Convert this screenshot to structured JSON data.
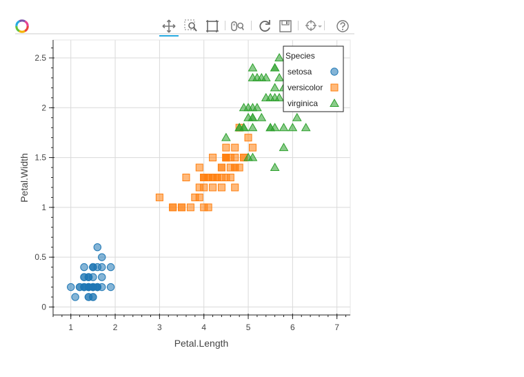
{
  "toolbar": {
    "tools": [
      {
        "name": "pan-tool",
        "icon": "move-icon",
        "active": true
      },
      {
        "name": "box-zoom-tool",
        "icon": "box-zoom-icon",
        "active": false
      },
      {
        "name": "box-select-tool",
        "icon": "box-select-icon",
        "active": false
      },
      {
        "name": "wheel-zoom-tool",
        "icon": "wheel-zoom-icon",
        "active": false
      },
      {
        "name": "reset-tool",
        "icon": "reset-icon",
        "active": false
      },
      {
        "name": "save-tool",
        "icon": "save-icon",
        "active": false
      },
      {
        "name": "hover-tool",
        "icon": "crosshair-icon",
        "active": false
      },
      {
        "name": "help-tool",
        "icon": "help-icon",
        "active": false
      }
    ]
  },
  "chart_data": {
    "type": "scatter",
    "title": "",
    "xlabel": "Petal.Length",
    "ylabel": "Petal.Width",
    "xlim": [
      0.6,
      7.3
    ],
    "ylim": [
      -0.08,
      2.68
    ],
    "xticks": [
      "1",
      "2",
      "3",
      "4",
      "5",
      "6",
      "7"
    ],
    "yticks": [
      "0",
      "0.5",
      "1",
      "1.5",
      "2",
      "2.5"
    ],
    "grid": true,
    "legend": {
      "title": "Species",
      "position": "top-right"
    },
    "series": [
      {
        "name": "setosa",
        "marker": "circle",
        "color": "#1f77b4",
        "points": [
          [
            1.4,
            0.2
          ],
          [
            1.4,
            0.2
          ],
          [
            1.3,
            0.2
          ],
          [
            1.5,
            0.2
          ],
          [
            1.4,
            0.2
          ],
          [
            1.7,
            0.4
          ],
          [
            1.4,
            0.3
          ],
          [
            1.5,
            0.2
          ],
          [
            1.4,
            0.2
          ],
          [
            1.5,
            0.1
          ],
          [
            1.5,
            0.2
          ],
          [
            1.6,
            0.2
          ],
          [
            1.4,
            0.1
          ],
          [
            1.1,
            0.1
          ],
          [
            1.2,
            0.2
          ],
          [
            1.5,
            0.4
          ],
          [
            1.3,
            0.4
          ],
          [
            1.4,
            0.3
          ],
          [
            1.7,
            0.3
          ],
          [
            1.5,
            0.3
          ],
          [
            1.7,
            0.2
          ],
          [
            1.5,
            0.4
          ],
          [
            1.0,
            0.2
          ],
          [
            1.7,
            0.5
          ],
          [
            1.9,
            0.2
          ],
          [
            1.6,
            0.2
          ],
          [
            1.6,
            0.4
          ],
          [
            1.5,
            0.2
          ],
          [
            1.4,
            0.2
          ],
          [
            1.6,
            0.2
          ],
          [
            1.6,
            0.2
          ],
          [
            1.5,
            0.4
          ],
          [
            1.5,
            0.1
          ],
          [
            1.4,
            0.2
          ],
          [
            1.5,
            0.2
          ],
          [
            1.2,
            0.2
          ],
          [
            1.3,
            0.2
          ],
          [
            1.4,
            0.1
          ],
          [
            1.3,
            0.2
          ],
          [
            1.5,
            0.2
          ],
          [
            1.3,
            0.3
          ],
          [
            1.3,
            0.3
          ],
          [
            1.3,
            0.2
          ],
          [
            1.6,
            0.6
          ],
          [
            1.9,
            0.4
          ],
          [
            1.4,
            0.3
          ],
          [
            1.6,
            0.2
          ],
          [
            1.4,
            0.2
          ],
          [
            1.5,
            0.2
          ],
          [
            1.4,
            0.2
          ]
        ]
      },
      {
        "name": "versicolor",
        "marker": "square",
        "color": "#ff7f0e",
        "points": [
          [
            4.7,
            1.4
          ],
          [
            4.5,
            1.5
          ],
          [
            4.9,
            1.5
          ],
          [
            4.0,
            1.3
          ],
          [
            4.6,
            1.5
          ],
          [
            4.5,
            1.3
          ],
          [
            4.7,
            1.6
          ],
          [
            3.3,
            1.0
          ],
          [
            4.6,
            1.3
          ],
          [
            3.9,
            1.4
          ],
          [
            3.5,
            1.0
          ],
          [
            4.2,
            1.5
          ],
          [
            4.0,
            1.0
          ],
          [
            4.7,
            1.4
          ],
          [
            3.6,
            1.3
          ],
          [
            4.4,
            1.4
          ],
          [
            4.5,
            1.5
          ],
          [
            4.1,
            1.0
          ],
          [
            4.5,
            1.5
          ],
          [
            3.9,
            1.1
          ],
          [
            4.8,
            1.8
          ],
          [
            4.0,
            1.3
          ],
          [
            4.9,
            1.5
          ],
          [
            4.7,
            1.2
          ],
          [
            4.3,
            1.3
          ],
          [
            4.4,
            1.4
          ],
          [
            4.8,
            1.4
          ],
          [
            5.0,
            1.7
          ],
          [
            4.5,
            1.5
          ],
          [
            3.5,
            1.0
          ],
          [
            3.8,
            1.1
          ],
          [
            3.7,
            1.0
          ],
          [
            3.9,
            1.2
          ],
          [
            5.1,
            1.6
          ],
          [
            4.5,
            1.5
          ],
          [
            4.5,
            1.6
          ],
          [
            4.7,
            1.5
          ],
          [
            4.4,
            1.3
          ],
          [
            4.1,
            1.3
          ],
          [
            4.0,
            1.3
          ],
          [
            4.4,
            1.2
          ],
          [
            4.6,
            1.4
          ],
          [
            4.0,
            1.2
          ],
          [
            3.3,
            1.0
          ],
          [
            4.2,
            1.3
          ],
          [
            4.2,
            1.2
          ],
          [
            4.2,
            1.3
          ],
          [
            4.3,
            1.3
          ],
          [
            3.0,
            1.1
          ],
          [
            4.1,
            1.3
          ]
        ]
      },
      {
        "name": "virginica",
        "marker": "triangle",
        "color": "#2ca02c",
        "points": [
          [
            6.0,
            2.5
          ],
          [
            5.1,
            1.9
          ],
          [
            5.9,
            2.1
          ],
          [
            5.6,
            1.8
          ],
          [
            5.8,
            2.2
          ],
          [
            6.6,
            2.1
          ],
          [
            4.5,
            1.7
          ],
          [
            6.3,
            1.8
          ],
          [
            5.8,
            1.8
          ],
          [
            6.1,
            2.5
          ],
          [
            5.1,
            2.0
          ],
          [
            5.3,
            1.9
          ],
          [
            5.5,
            2.1
          ],
          [
            5.0,
            2.0
          ],
          [
            5.1,
            2.4
          ],
          [
            5.3,
            2.3
          ],
          [
            5.5,
            1.8
          ],
          [
            6.7,
            2.2
          ],
          [
            6.9,
            2.3
          ],
          [
            5.0,
            1.5
          ],
          [
            5.7,
            2.3
          ],
          [
            4.9,
            2.0
          ],
          [
            6.7,
            2.0
          ],
          [
            4.9,
            1.8
          ],
          [
            5.7,
            2.1
          ],
          [
            6.0,
            1.8
          ],
          [
            4.8,
            1.8
          ],
          [
            4.9,
            1.8
          ],
          [
            5.6,
            2.1
          ],
          [
            5.8,
            1.6
          ],
          [
            6.1,
            1.9
          ],
          [
            6.4,
            2.0
          ],
          [
            5.6,
            2.2
          ],
          [
            5.1,
            1.5
          ],
          [
            5.6,
            1.4
          ],
          [
            6.1,
            2.3
          ],
          [
            5.6,
            2.4
          ],
          [
            5.5,
            1.8
          ],
          [
            4.8,
            1.8
          ],
          [
            5.4,
            2.1
          ],
          [
            5.6,
            2.4
          ],
          [
            5.1,
            2.3
          ],
          [
            5.1,
            1.9
          ],
          [
            5.9,
            2.3
          ],
          [
            5.7,
            2.5
          ],
          [
            5.2,
            2.3
          ],
          [
            5.0,
            1.9
          ],
          [
            5.2,
            2.0
          ],
          [
            5.4,
            2.3
          ],
          [
            5.1,
            1.8
          ]
        ]
      }
    ]
  }
}
